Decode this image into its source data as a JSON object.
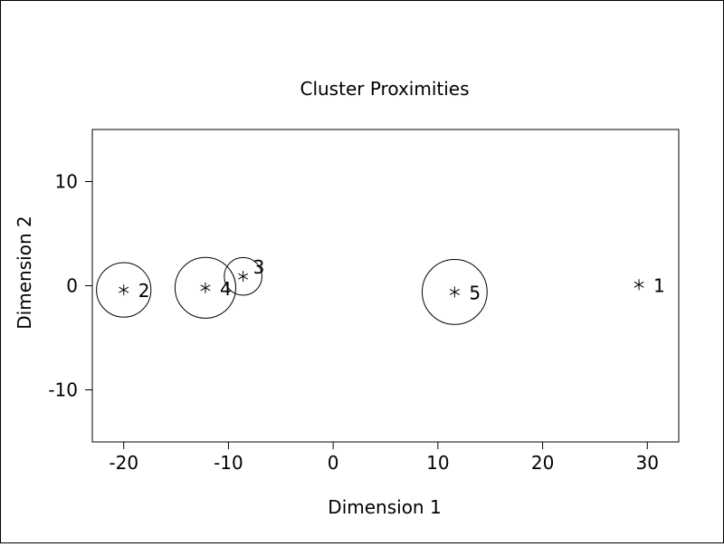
{
  "chart_data": {
    "type": "scatter",
    "title": "Cluster Proximities",
    "xlabel": "Dimension 1",
    "ylabel": "Dimension 2",
    "xlim": [
      -23,
      33
    ],
    "ylim": [
      -15,
      15
    ],
    "xticks": [
      -20,
      -10,
      0,
      10,
      20,
      30
    ],
    "yticks": [
      10,
      0,
      -10
    ],
    "tick_labels_x": [
      "-20",
      "-10",
      "0",
      "10",
      "20",
      "30"
    ],
    "tick_labels_y": [
      "10",
      "0",
      "-10"
    ],
    "grid": false,
    "legend": "none",
    "marker": "asterisk",
    "points": [
      {
        "label": "1",
        "x": 29.2,
        "y": 0.1,
        "radius": 0
      },
      {
        "label": "2",
        "x": -20.0,
        "y": -0.4,
        "radius": 2.6
      },
      {
        "label": "3",
        "x": -8.6,
        "y": 0.9,
        "radius": 1.8
      },
      {
        "label": "4",
        "x": -12.2,
        "y": -0.2,
        "radius": 2.9
      },
      {
        "label": "5",
        "x": 11.6,
        "y": -0.6,
        "radius": 3.1
      }
    ]
  }
}
